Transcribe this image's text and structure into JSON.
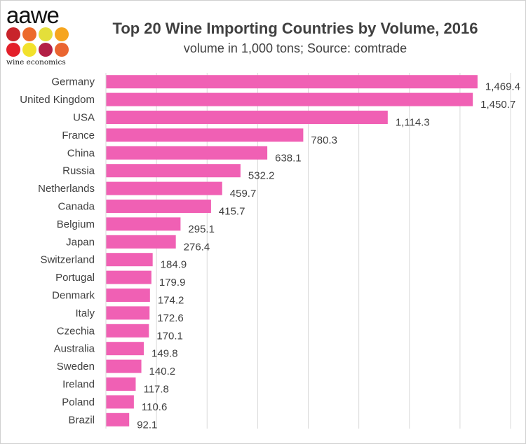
{
  "logo": {
    "word": "aawe",
    "sub": "wine economics",
    "dot_colors": [
      "#c8242b",
      "#ec6a2b",
      "#e4df3a",
      "#f6a51e",
      "#e3202b",
      "#f2e12c",
      "#b31f45",
      "#ea6530"
    ]
  },
  "chart_data": {
    "type": "bar",
    "orientation": "horizontal",
    "title": "Top 20 Wine Importing Countries by Volume, 2016",
    "subtitle": "volume in 1,000 tons; Source: comtrade",
    "xlabel": "",
    "ylabel": "",
    "xlim": [
      0,
      1600
    ],
    "grid_step": 200,
    "grid": true,
    "bar_color": "#f060b4",
    "categories": [
      "Germany",
      "United Kingdom",
      "USA",
      "France",
      "China",
      "Russia",
      "Netherlands",
      "Canada",
      "Belgium",
      "Japan",
      "Switzerland",
      "Portugal",
      "Denmark",
      "Italy",
      "Czechia",
      "Australia",
      "Sweden",
      "Ireland",
      "Poland",
      "Brazil"
    ],
    "values": [
      1469.4,
      1450.7,
      1114.3,
      780.3,
      638.1,
      532.2,
      459.7,
      415.7,
      295.1,
      276.4,
      184.9,
      179.9,
      174.2,
      172.6,
      170.1,
      149.8,
      140.2,
      117.8,
      110.6,
      92.1
    ],
    "labels": [
      "1,469.4",
      "1,450.7",
      "1,114.3",
      "780.3",
      "638.1",
      "532.2",
      "459.7",
      "415.7",
      "295.1",
      "276.4",
      "184.9",
      "179.9",
      "174.2",
      "172.6",
      "170.1",
      "149.8",
      "140.2",
      "117.8",
      "110.6",
      "92.1"
    ]
  }
}
